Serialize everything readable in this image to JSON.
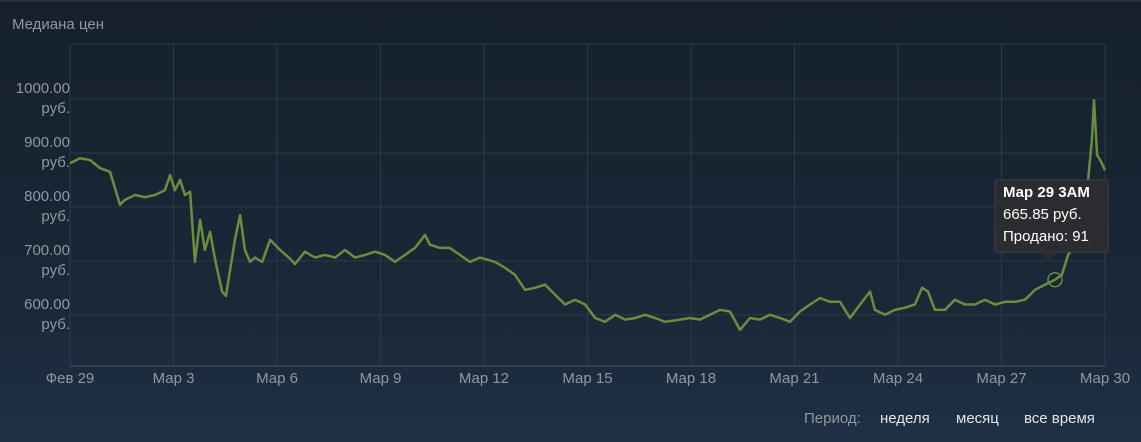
{
  "chart_data": {
    "type": "line",
    "title": "Медиана цен",
    "color": "#688f3e",
    "grid": true,
    "xlim": [
      0,
      30
    ],
    "ylim": [
      505,
      1102
    ],
    "xticks": [
      {
        "value": 0,
        "label": "Фев 29"
      },
      {
        "value": 3,
        "label": "Мар 3"
      },
      {
        "value": 6,
        "label": "Мар 6"
      },
      {
        "value": 9,
        "label": "Мар 9"
      },
      {
        "value": 12,
        "label": "Мар 12"
      },
      {
        "value": 15,
        "label": "Мар 15"
      },
      {
        "value": 18,
        "label": "Мар 18"
      },
      {
        "value": 21,
        "label": "Мар 21"
      },
      {
        "value": 24,
        "label": "Мар 24"
      },
      {
        "value": 27,
        "label": "Мар 27"
      },
      {
        "value": 30,
        "label": "Мар 30"
      }
    ],
    "yticks": [
      {
        "value": 600,
        "label": "600.00 руб."
      },
      {
        "value": 700,
        "label": "700.00 руб."
      },
      {
        "value": 800,
        "label": "800.00 руб."
      },
      {
        "value": 900,
        "label": "900.00 руб."
      },
      {
        "value": 1000,
        "label": "1000.00 руб."
      }
    ],
    "x": [
      0,
      0.29,
      0.58,
      0.87,
      1.16,
      1.45,
      1.59,
      1.88,
      2.17,
      2.46,
      2.75,
      2.9,
      3.04,
      3.19,
      3.33,
      3.48,
      3.62,
      3.77,
      3.91,
      4.06,
      4.2,
      4.41,
      4.52,
      4.64,
      4.78,
      4.93,
      5.07,
      5.22,
      5.36,
      5.57,
      5.8,
      6.09,
      6.38,
      6.52,
      6.81,
      7.1,
      7.39,
      7.68,
      7.97,
      8.26,
      8.55,
      8.84,
      9.13,
      9.42,
      9.71,
      10,
      10.29,
      10.43,
      10.72,
      11.01,
      11.3,
      11.59,
      11.88,
      12.32,
      12.61,
      12.9,
      13.19,
      13.48,
      13.77,
      14.06,
      14.35,
      14.64,
      14.93,
      15.22,
      15.51,
      15.8,
      16.09,
      16.38,
      16.67,
      16.96,
      17.25,
      17.68,
      17.97,
      18.26,
      18.55,
      18.84,
      19.13,
      19.42,
      19.71,
      20,
      20.29,
      20.58,
      20.87,
      21.16,
      21.45,
      21.74,
      22.03,
      22.32,
      22.61,
      22.9,
      23.19,
      23.33,
      23.62,
      23.91,
      24.2,
      24.49,
      24.7,
      24.87,
      25.07,
      25.36,
      25.65,
      25.94,
      26.23,
      26.52,
      26.81,
      27.1,
      27.39,
      27.68,
      27.97,
      28.26,
      28.55,
      28.75,
      28.93,
      29.13,
      29.33,
      29.51,
      29.62,
      29.68,
      29.77,
      29.86,
      30
    ],
    "values": [
      881,
      890,
      887,
      872,
      865,
      804,
      813,
      822,
      818,
      822,
      831,
      859,
      831,
      850,
      822,
      828,
      698,
      776,
      720,
      754,
      704,
      643,
      635,
      683,
      739,
      785,
      720,
      698,
      706,
      698,
      739,
      720,
      704,
      694,
      717,
      706,
      711,
      706,
      720,
      706,
      711,
      717,
      711,
      698,
      711,
      724,
      748,
      730,
      724,
      724,
      711,
      698,
      706,
      698,
      687,
      674,
      646,
      650,
      656,
      637,
      619,
      628,
      619,
      594,
      587,
      600,
      591,
      594,
      600,
      594,
      587,
      591,
      594,
      591,
      600,
      609,
      606,
      572,
      594,
      591,
      600,
      594,
      587,
      606,
      619,
      631,
      624,
      624,
      594,
      619,
      643,
      609,
      600,
      609,
      613,
      619,
      650,
      643,
      609,
      609,
      628,
      619,
      619,
      628,
      619,
      624,
      624,
      628,
      646,
      656,
      665,
      674,
      711,
      730,
      757,
      850,
      924,
      998,
      896,
      887,
      868
    ],
    "tooltip": {
      "lines": [
        "Мар 29 3AM",
        "665.85 руб.",
        "Продано: 91"
      ]
    }
  },
  "footer": {
    "label": "Период:",
    "options": [
      "неделя",
      "месяц",
      "все время"
    ]
  }
}
